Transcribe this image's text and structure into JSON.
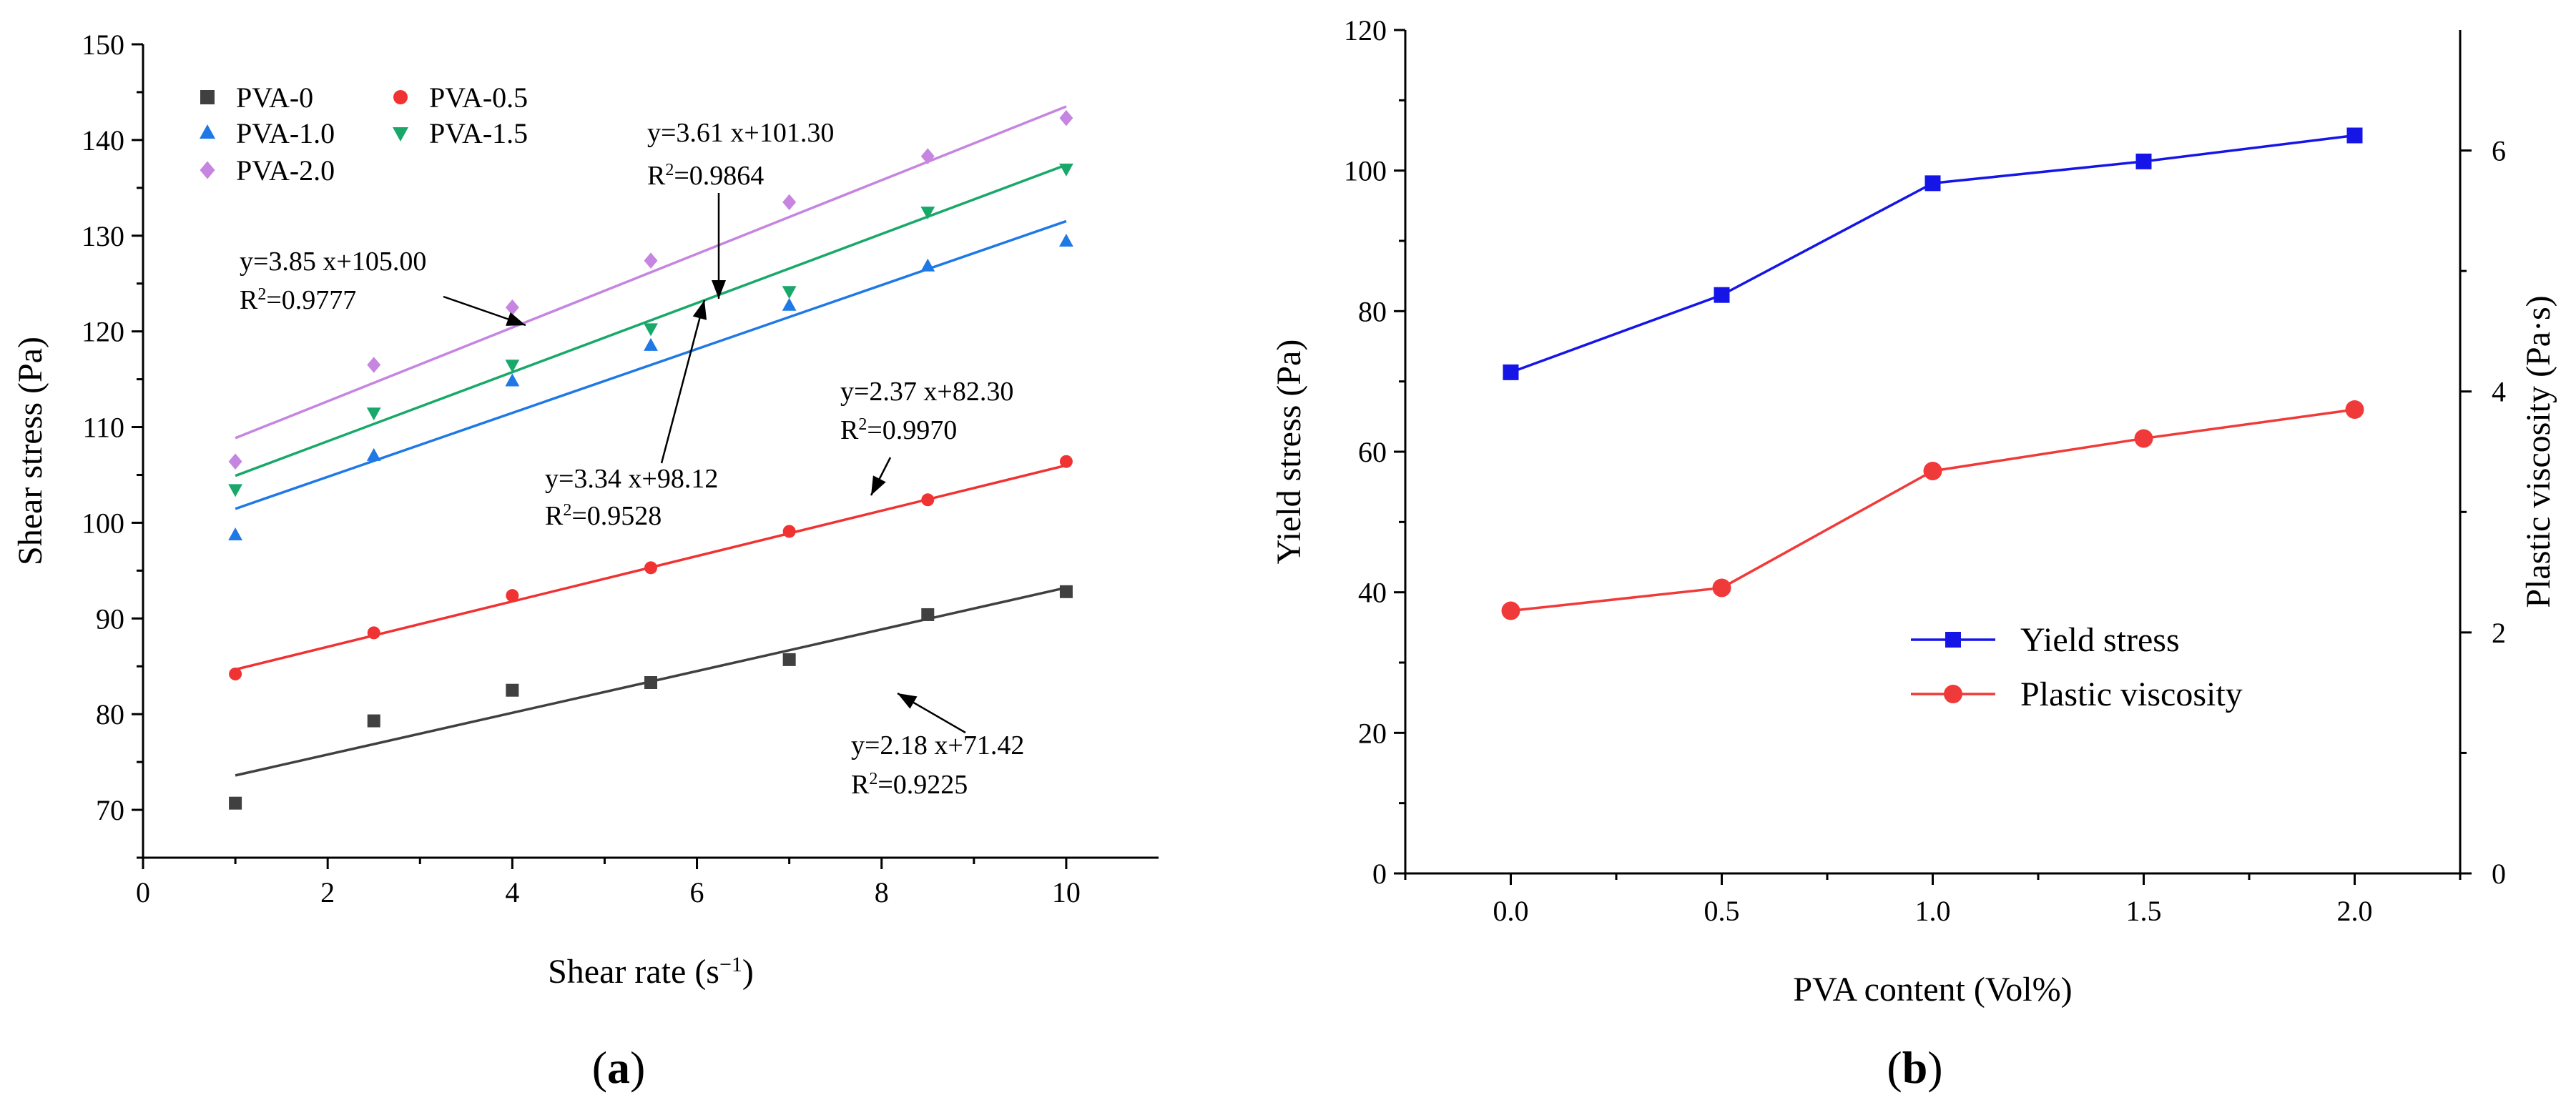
{
  "chart_data": [
    {
      "type": "scatter",
      "panel_label": "a",
      "xlabel": "Shear rate (s",
      "xlabel_sup": "−1",
      "xlabel_end": ")",
      "ylabel": "Shear stress (Pa)",
      "xlim": [
        0,
        11
      ],
      "ylim": [
        65,
        150
      ],
      "x_ticks": [
        "0",
        "2",
        "4",
        "6",
        "8",
        "10"
      ],
      "y_ticks": [
        "70",
        "80",
        "90",
        "100",
        "110",
        "120",
        "130",
        "140",
        "150"
      ],
      "x": [
        1,
        2.5,
        4,
        5.5,
        7,
        8.5,
        10
      ],
      "series": [
        {
          "name": "PVA-0",
          "color": "#404040",
          "marker": "square",
          "values": [
            70.7,
            79.3,
            82.5,
            83.3,
            85.7,
            90.4,
            92.8
          ],
          "fit": {
            "slope": 2.18,
            "intercept": 71.42
          }
        },
        {
          "name": "PVA-0.5",
          "color": "#f03232",
          "marker": "circle",
          "values": [
            84.2,
            88.5,
            92.4,
            95.3,
            99.1,
            102.4,
            106.4
          ],
          "fit": {
            "slope": 2.37,
            "intercept": 82.3
          }
        },
        {
          "name": "PVA-1.0",
          "color": "#1e78e6",
          "marker": "triangle-up",
          "values": [
            98.7,
            107.0,
            114.8,
            118.5,
            122.7,
            126.8,
            129.4
          ],
          "fit": {
            "slope": 3.34,
            "intercept": 98.12
          }
        },
        {
          "name": "PVA-1.5",
          "color": "#1aa86a",
          "marker": "triangle-down",
          "values": [
            103.5,
            111.5,
            116.5,
            120.3,
            124.2,
            132.5,
            137.0
          ],
          "fit": {
            "slope": 3.61,
            "intercept": 101.3
          }
        },
        {
          "name": "PVA-2.0",
          "color": "#c585e0",
          "marker": "diamond",
          "values": [
            106.4,
            116.5,
            122.5,
            127.4,
            133.5,
            138.3,
            142.3
          ],
          "fit": {
            "slope": 3.85,
            "intercept": 105.0
          }
        }
      ],
      "annotations": [
        {
          "eq": "y=2.18 x+71.42",
          "r2_prefix": "R",
          "r2_sup": "2",
          "r2_value": "=0.9225"
        },
        {
          "eq": "y=2.37 x+82.30",
          "r2_prefix": "R",
          "r2_sup": "2",
          "r2_value": "=0.9970"
        },
        {
          "eq": "y=3.34 x+98.12",
          "r2_prefix": "R",
          "r2_sup": "2",
          "r2_value": "=0.9528"
        },
        {
          "eq": "y=3.61 x+101.30",
          "r2_prefix": "R",
          "r2_sup": "2",
          "r2_value": "=0.9864"
        },
        {
          "eq": "y=3.85 x+105.00",
          "r2_prefix": "R",
          "r2_sup": "2",
          "r2_value": "=0.9777"
        }
      ],
      "legend_position": "top-left"
    },
    {
      "type": "line",
      "panel_label": "b",
      "xlabel": "PVA content (Vol%)",
      "ylabel": "Yield stress (Pa)",
      "ylabel_right": "Plastic viscosity (Pa·s)",
      "xlim": [
        -0.25,
        2.25
      ],
      "ylim": [
        0,
        120
      ],
      "ylim_right": [
        0,
        7
      ],
      "x_ticks": [
        "0.0",
        "0.5",
        "1.0",
        "1.5",
        "2.0"
      ],
      "y_ticks": [
        "0",
        "20",
        "40",
        "60",
        "80",
        "100",
        "120"
      ],
      "y_ticks_right": [
        "0",
        "2",
        "4",
        "6"
      ],
      "x": [
        0.0,
        0.5,
        1.0,
        1.5,
        2.0
      ],
      "series": [
        {
          "name": "Yield stress",
          "color": "#1515e8",
          "marker": "square",
          "axis": "left",
          "values": [
            71.3,
            82.3,
            98.2,
            101.3,
            105.0
          ]
        },
        {
          "name": "Plastic viscosity",
          "color": "#f03a3a",
          "marker": "circle",
          "axis": "right",
          "values": [
            2.18,
            2.37,
            3.34,
            3.61,
            3.85
          ]
        }
      ],
      "legend_position": "lower-right"
    }
  ]
}
